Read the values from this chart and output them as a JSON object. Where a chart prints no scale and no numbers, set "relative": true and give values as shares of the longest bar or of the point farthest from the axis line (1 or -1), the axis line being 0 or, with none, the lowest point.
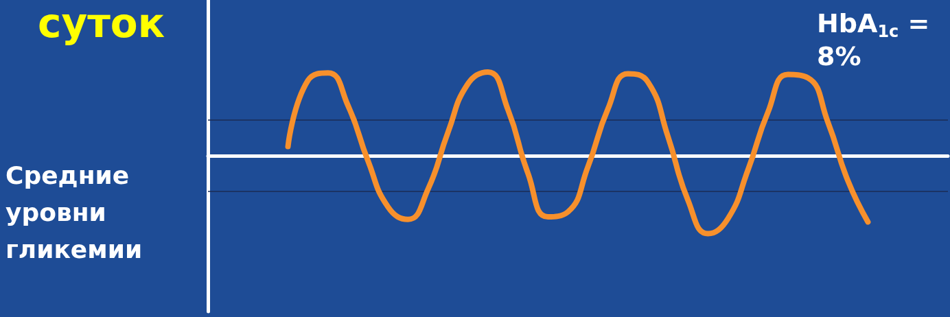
{
  "chart_data": {
    "type": "line",
    "relative": true,
    "title": "суток",
    "ylabel": "Средние уровни гликемии",
    "annotations": [
      "HbA$_{1c}$ = 8%"
    ],
    "categories": [
      null,
      null,
      null,
      null,
      null,
      null,
      null,
      null,
      null,
      null,
      null,
      null,
      null,
      null,
      null,
      null,
      null,
      null,
      null,
      null,
      null,
      null,
      null,
      null,
      null,
      null,
      null,
      null,
      null,
      null,
      null,
      null,
      null,
      null,
      null,
      null,
      null,
      null
    ],
    "series": [
      {
        "color": "#f7902c",
        "values": [
          null,
          null,
          null,
          null,
          0.11,
          0.9,
          0.99,
          0.6,
          -0.06,
          -0.61,
          -0.76,
          -0.4,
          0.28,
          0.86,
          1,
          0.55,
          -0.21,
          -0.73,
          -0.67,
          -0.13,
          0.56,
          0.98,
          0.88,
          0.23,
          -0.53,
          -0.93,
          -0.75,
          -0.17,
          0.52,
          0.97,
          0.93,
          0.4,
          -0.3,
          -0.79,
          null,
          null,
          null,
          null
        ]
      }
    ],
    "ref_lines": [
      {
        "axis": "y",
        "value": 0.43,
        "color": "#1b2b55"
      },
      {
        "axis": "y",
        "value": -0.42,
        "color": "#1b2b55"
      }
    ],
    "grid": false,
    "line_style": "solid"
  }
}
